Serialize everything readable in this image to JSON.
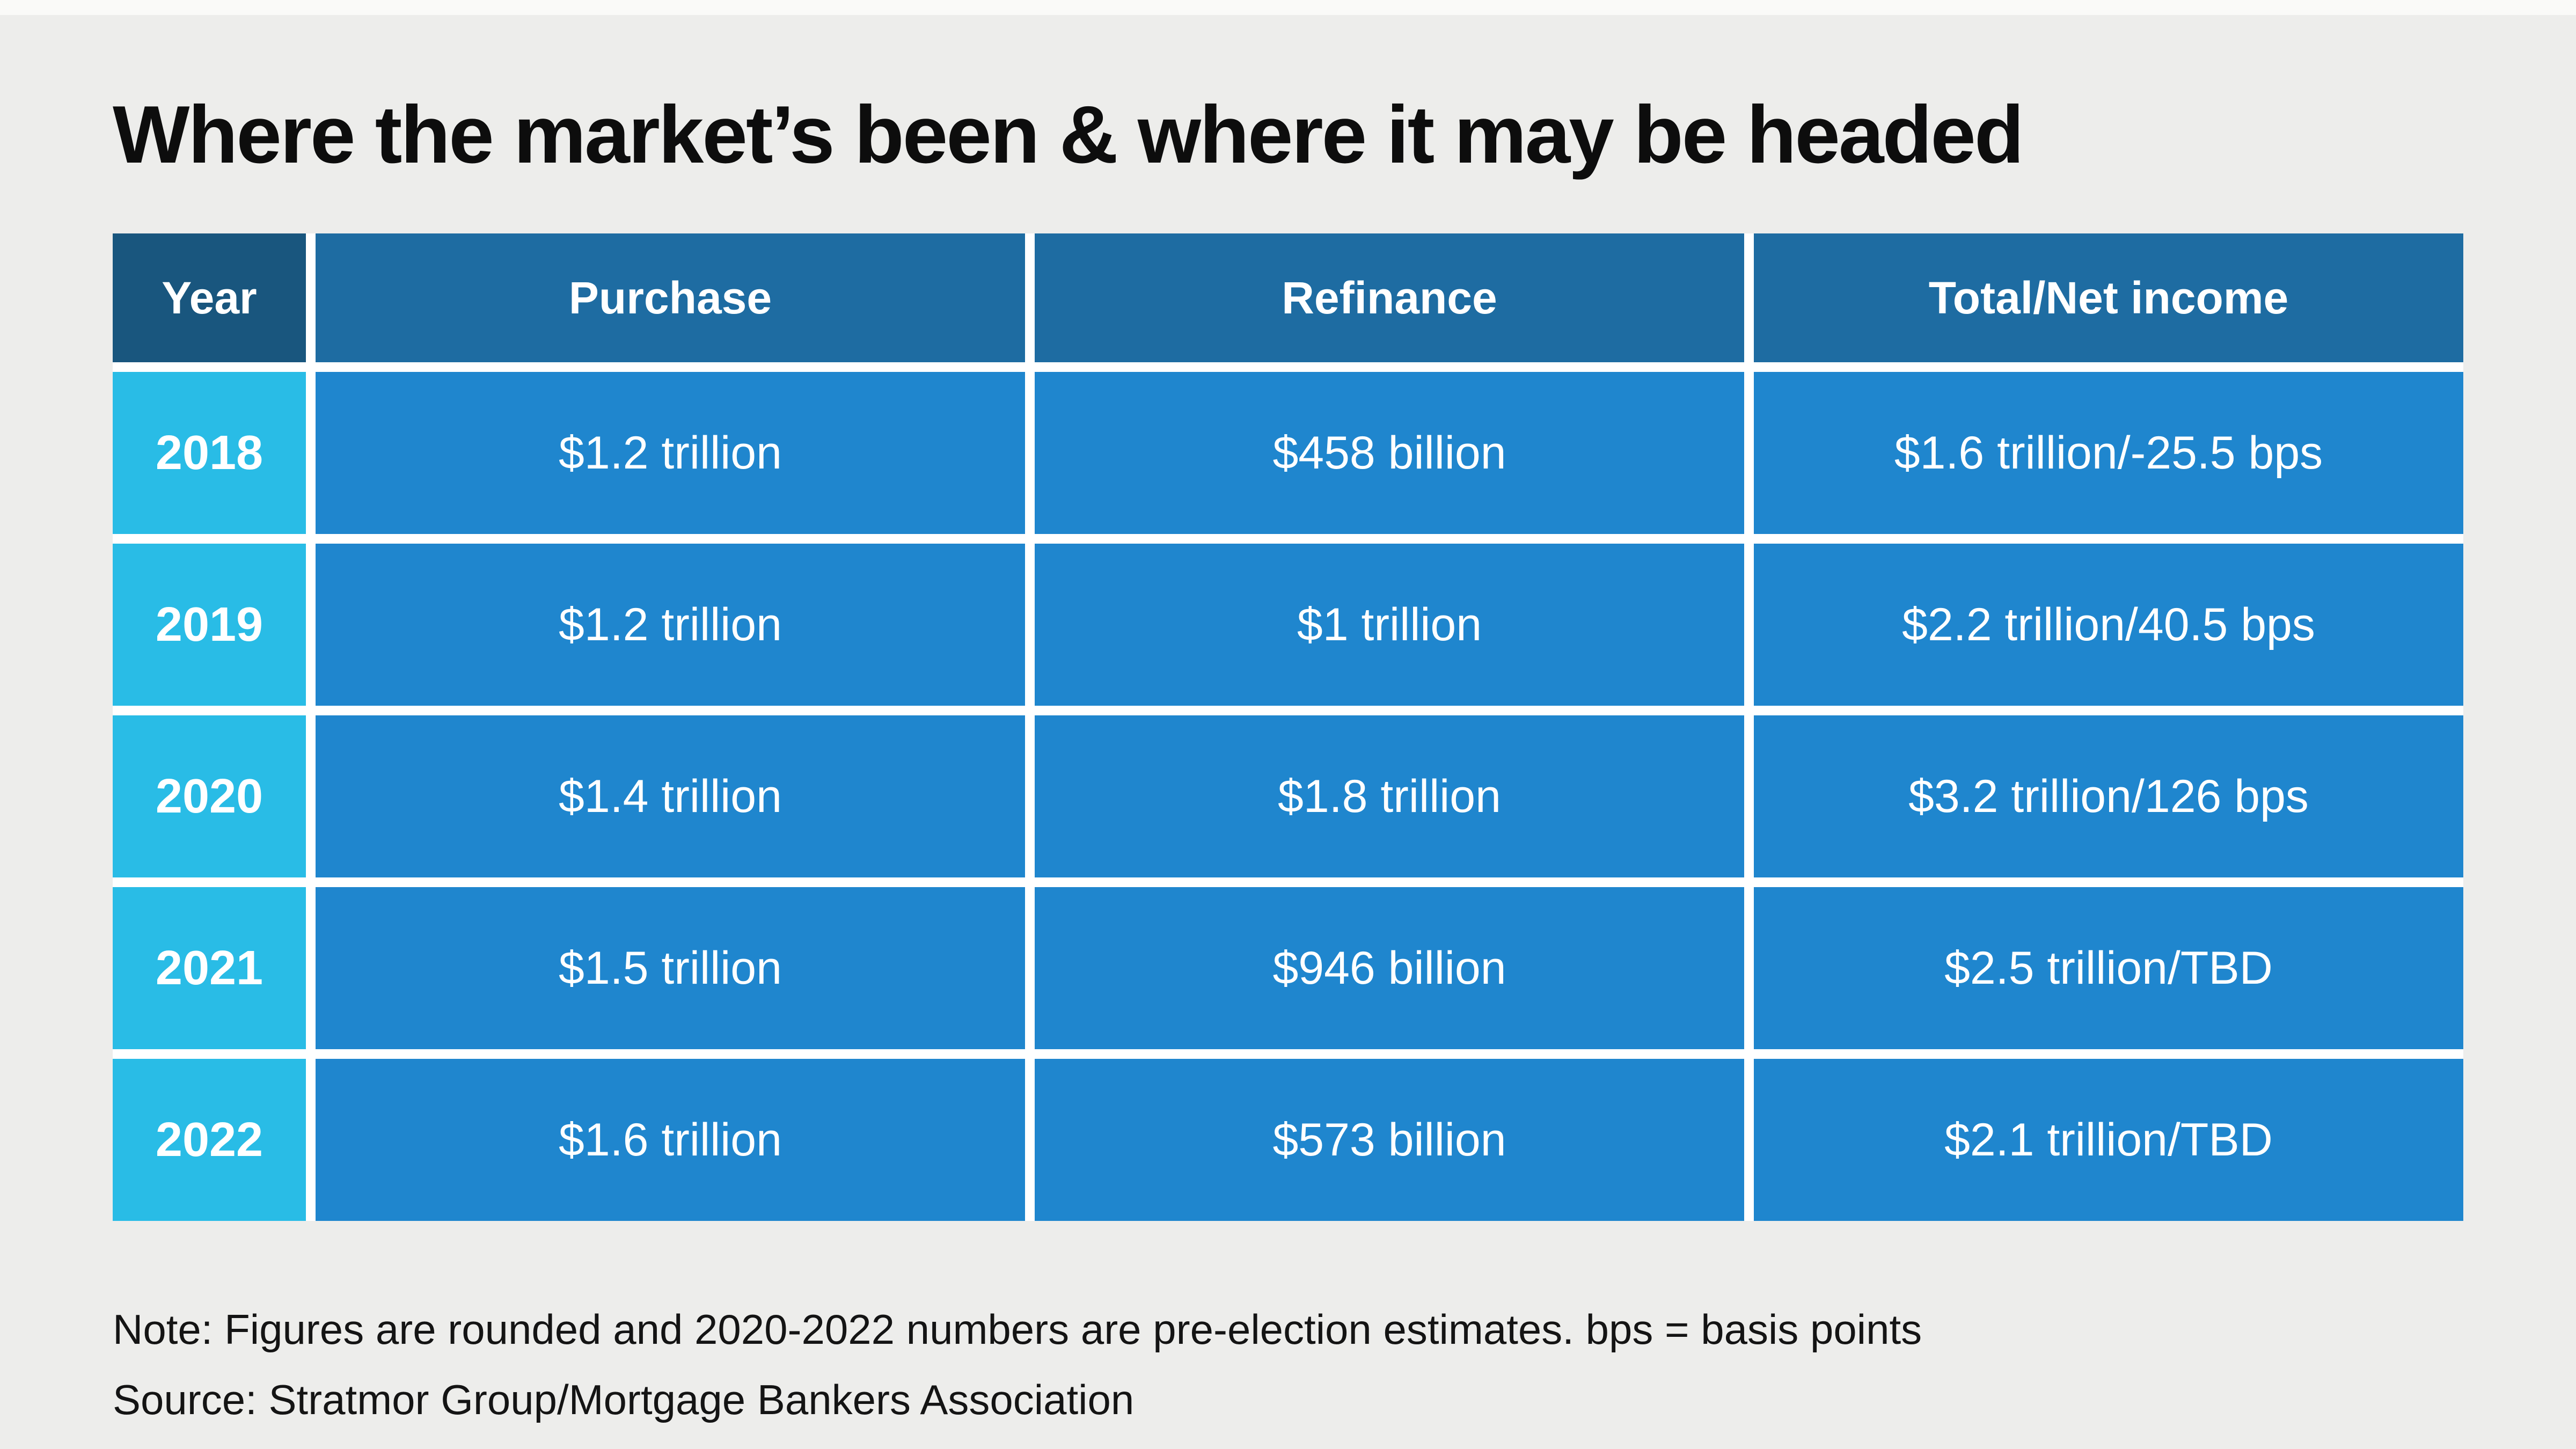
{
  "title": "Where the market’s been & where it may be headed",
  "colors": {
    "page_background": "#EDEDEB",
    "header_bg": "#1E6CA2",
    "header_year_bg": "#19567E",
    "year_cell_bg": "#29BCE6",
    "data_cell_bg": "#1F86CE",
    "cell_text": "#FFFFFF",
    "title_text": "#0D0D0D",
    "grid_gap": "#FFFFFF"
  },
  "chart_data": {
    "type": "table",
    "title": "Where the market’s been & where it may be headed",
    "columns": [
      "Year",
      "Purchase",
      "Refinance",
      "Total/Net income"
    ],
    "rows": [
      [
        "2018",
        "$1.2 trillion",
        "$458 billion",
        "$1.6 trillion/-25.5 bps"
      ],
      [
        "2019",
        "$1.2 trillion",
        "$1 trillion",
        "$2.2 trillion/40.5 bps"
      ],
      [
        "2020",
        "$1.4 trillion",
        "$1.8 trillion",
        "$3.2 trillion/126 bps"
      ],
      [
        "2021",
        "$1.5 trillion",
        "$946 billion",
        "$2.5 trillion/TBD"
      ],
      [
        "2022",
        "$1.6 trillion",
        "$573 billion",
        "$2.1 trillion/TBD"
      ]
    ],
    "note": "Note: Figures are rounded and 2020-2022 numbers are pre-election estimates. bps = basis points",
    "source": "Source: Stratmor Group/Mortgage Bankers Association"
  }
}
